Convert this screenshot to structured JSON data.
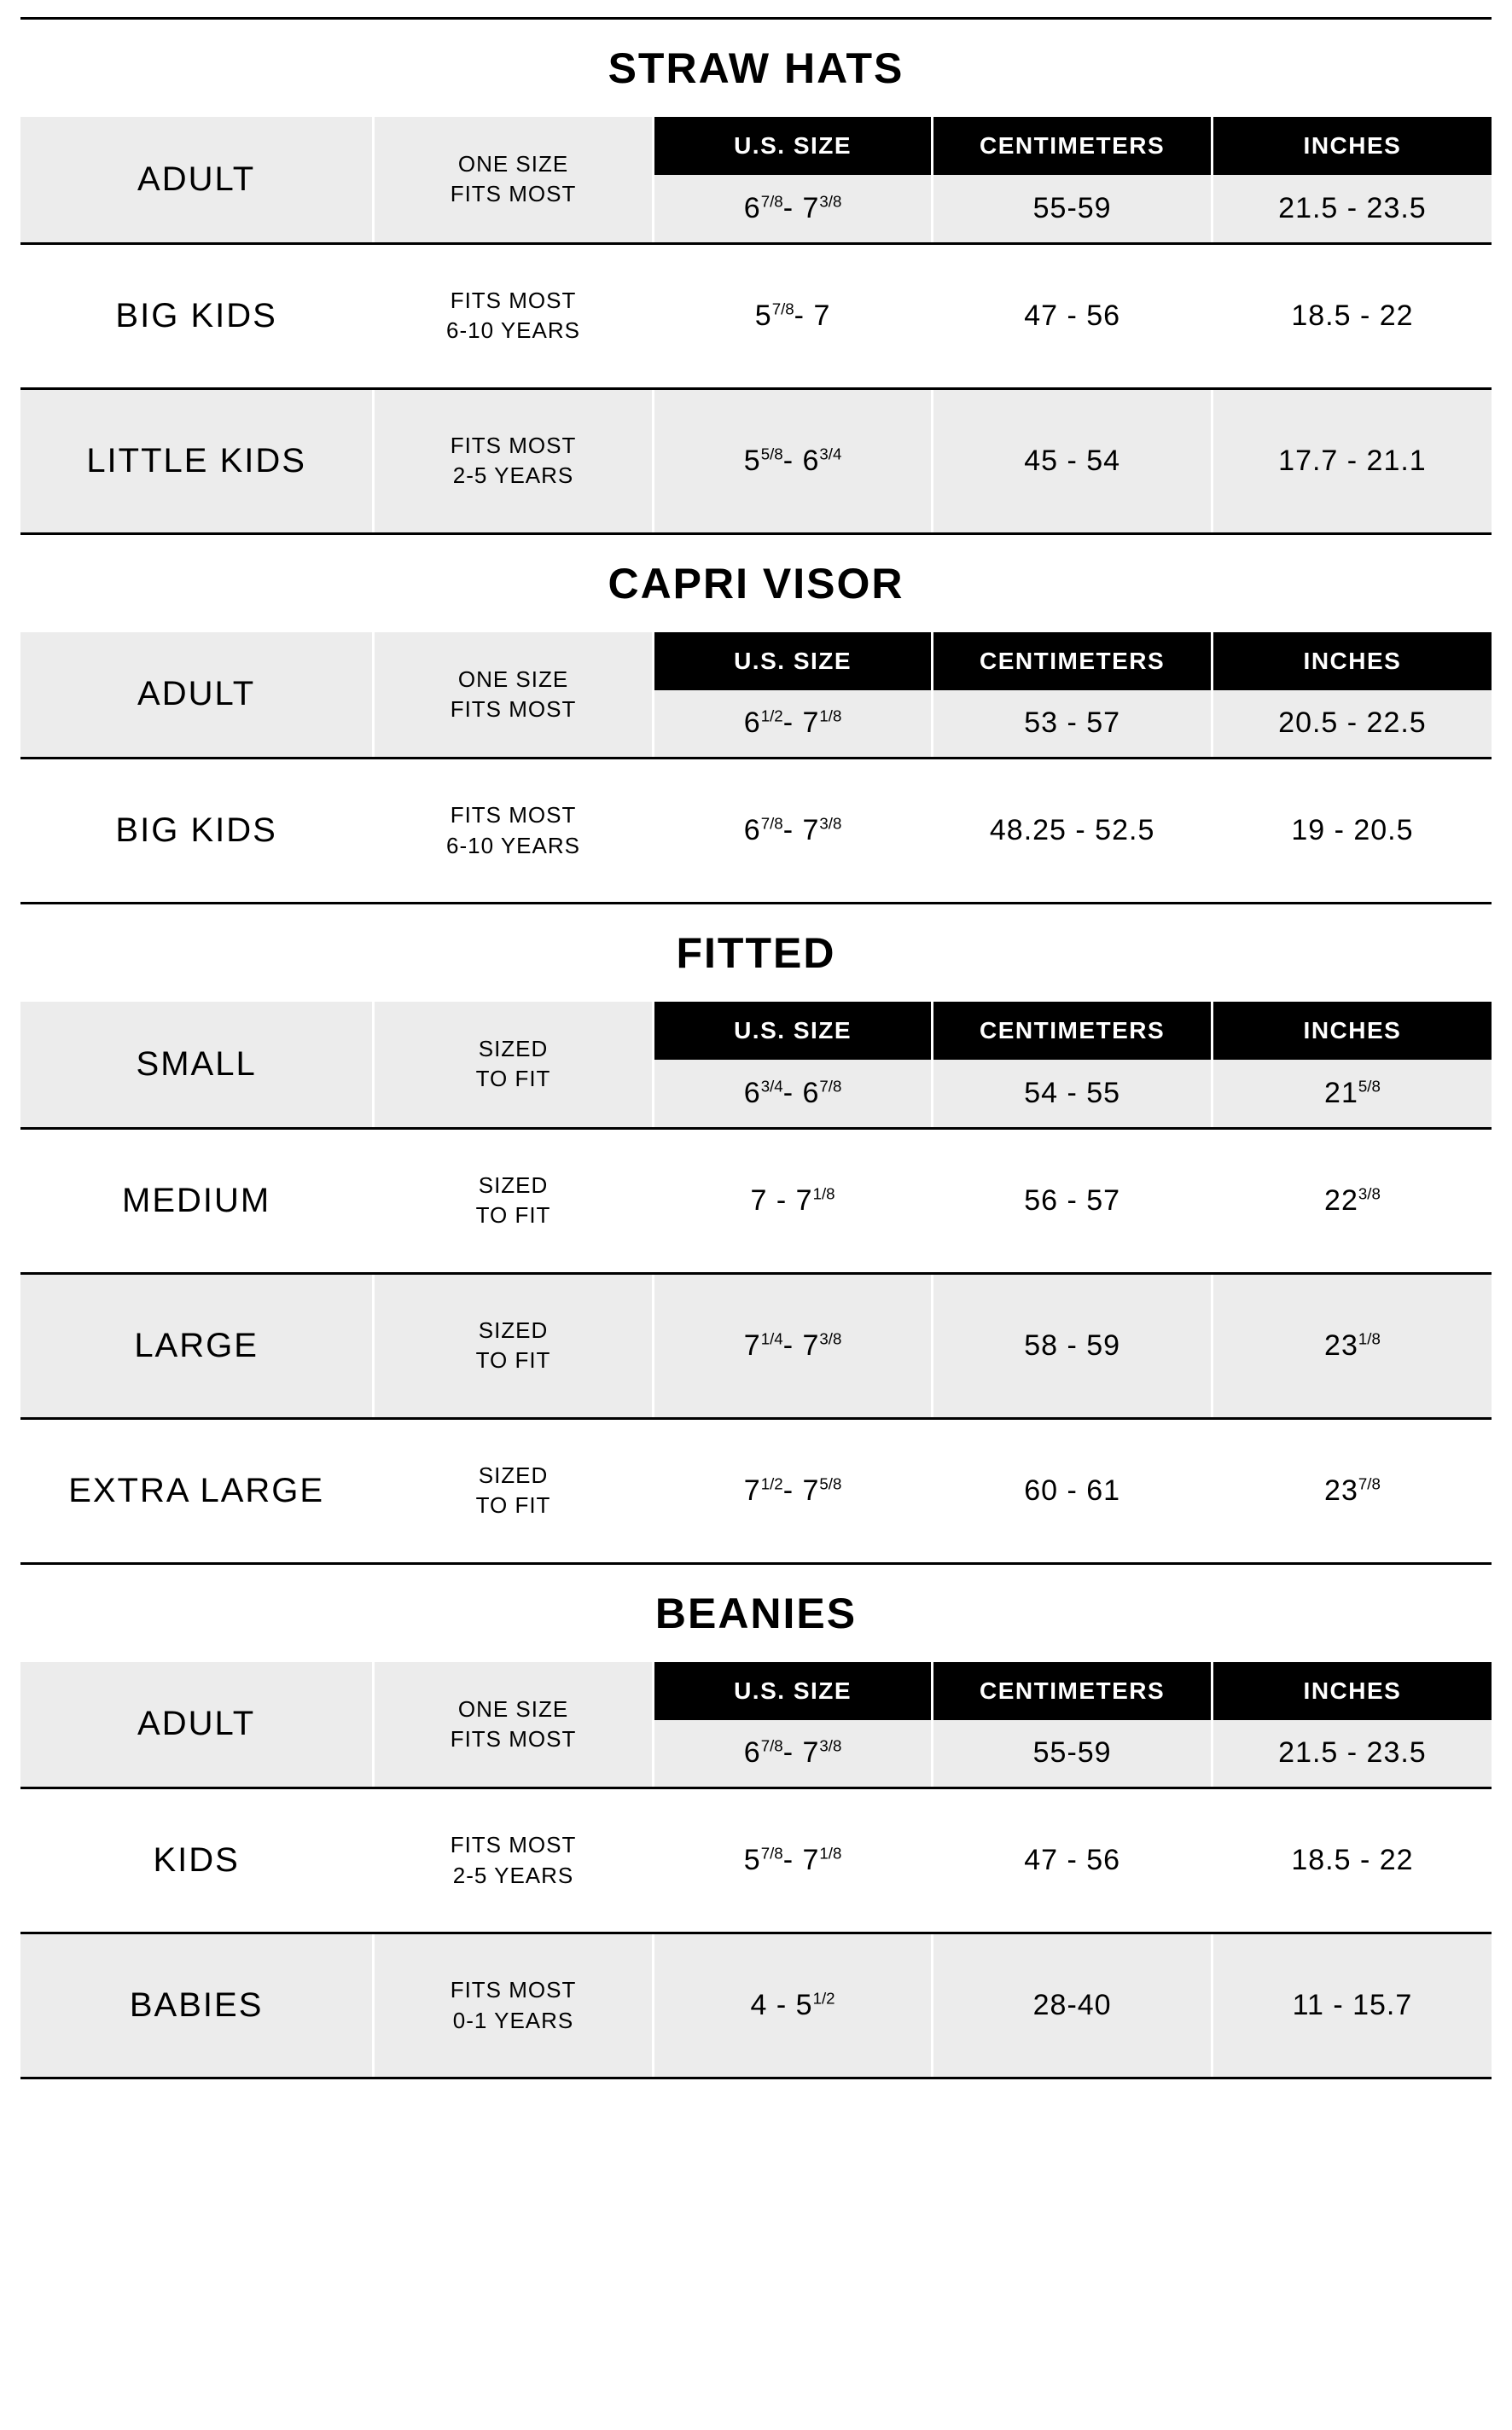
{
  "headers": {
    "us": "U.S. SIZE",
    "cm": "CENTIMETERS",
    "in": "INCHES"
  },
  "sections": [
    {
      "title": "STRAW HATS",
      "rows": [
        {
          "name": "ADULT",
          "note": "ONE SIZE<br>FITS MOST",
          "shaded": true,
          "us": "6<span class='frac'>7/8</span>- 7<span class='frac'>3/8</span>",
          "cm": "55-59",
          "in": "21.5 - 23.5"
        },
        {
          "name": "BIG KIDS",
          "note": "FITS MOST<br>6-10 YEARS",
          "shaded": false,
          "tall": true,
          "us": "5<span class='frac'>7/8</span>- 7",
          "cm": "47 - 56",
          "in": "18.5 - 22"
        },
        {
          "name": "LITTLE KIDS",
          "note": "FITS MOST<br>2-5 YEARS",
          "shaded": true,
          "tall": true,
          "us": "5<span class='frac'>5/8</span>- 6<span class='frac'>3/4</span>",
          "cm": "45 - 54",
          "in": "17.7 - 21.1"
        }
      ]
    },
    {
      "title": "CAPRI VISOR",
      "rows": [
        {
          "name": "ADULT",
          "note": "ONE SIZE<br>FITS MOST",
          "shaded": true,
          "us": "6<span class='frac'>1/2</span>- 7<span class='frac'>1/8</span>",
          "cm": "53 - 57",
          "in": "20.5 - 22.5"
        },
        {
          "name": "BIG KIDS",
          "note": "FITS MOST<br>6-10 YEARS",
          "shaded": false,
          "tall": true,
          "us": "6<span class='frac'>7/8</span>- 7<span class='frac'>3/8</span>",
          "cm": "48.25 - 52.5",
          "in": "19 - 20.5"
        }
      ]
    },
    {
      "title": "FITTED",
      "rows": [
        {
          "name": "SMALL",
          "note": "SIZED<br>TO FIT",
          "shaded": true,
          "us": "6<span class='frac'>3/4</span>- 6<span class='frac'>7/8</span>",
          "cm": "54 - 55",
          "in": "21<span class='frac'>5/8</span>"
        },
        {
          "name": "MEDIUM",
          "note": "SIZED<br>TO FIT",
          "shaded": false,
          "tall": true,
          "us": "7 - 7<span class='frac'>1/8</span>",
          "cm": "56 - 57",
          "in": "22<span class='frac'>3/8</span>"
        },
        {
          "name": "LARGE",
          "note": "SIZED<br>TO FIT",
          "shaded": true,
          "tall": true,
          "us": "7<span class='frac'>1/4</span>- 7<span class='frac'>3/8</span>",
          "cm": "58 - 59",
          "in": "23<span class='frac'>1/8</span>"
        },
        {
          "name": "EXTRA LARGE",
          "note": "SIZED<br>TO FIT",
          "shaded": false,
          "tall": true,
          "us": "7<span class='frac'>1/2</span>- 7<span class='frac'>5/8</span>",
          "cm": "60 - 61",
          "in": "23<span class='frac'>7/8</span>"
        }
      ]
    },
    {
      "title": "BEANIES",
      "rows": [
        {
          "name": "ADULT",
          "note": "ONE SIZE<br>FITS MOST",
          "shaded": true,
          "us": "6<span class='frac'>7/8</span>- 7<span class='frac'>3/8</span>",
          "cm": "55-59",
          "in": "21.5 - 23.5"
        },
        {
          "name": "KIDS",
          "note": "FITS MOST<br>2-5 YEARS",
          "shaded": false,
          "tall": true,
          "us": "5<span class='frac'>7/8</span>- 7<span class='frac'>1/8</span>",
          "cm": "47 - 56",
          "in": "18.5 - 22"
        },
        {
          "name": "BABIES",
          "note": "FITS MOST<br>0-1 YEARS",
          "shaded": true,
          "tall": true,
          "us": "4 - 5<span class='frac'>1/2</span>",
          "cm": "28-40",
          "in": "11 - 15.7"
        }
      ]
    }
  ]
}
